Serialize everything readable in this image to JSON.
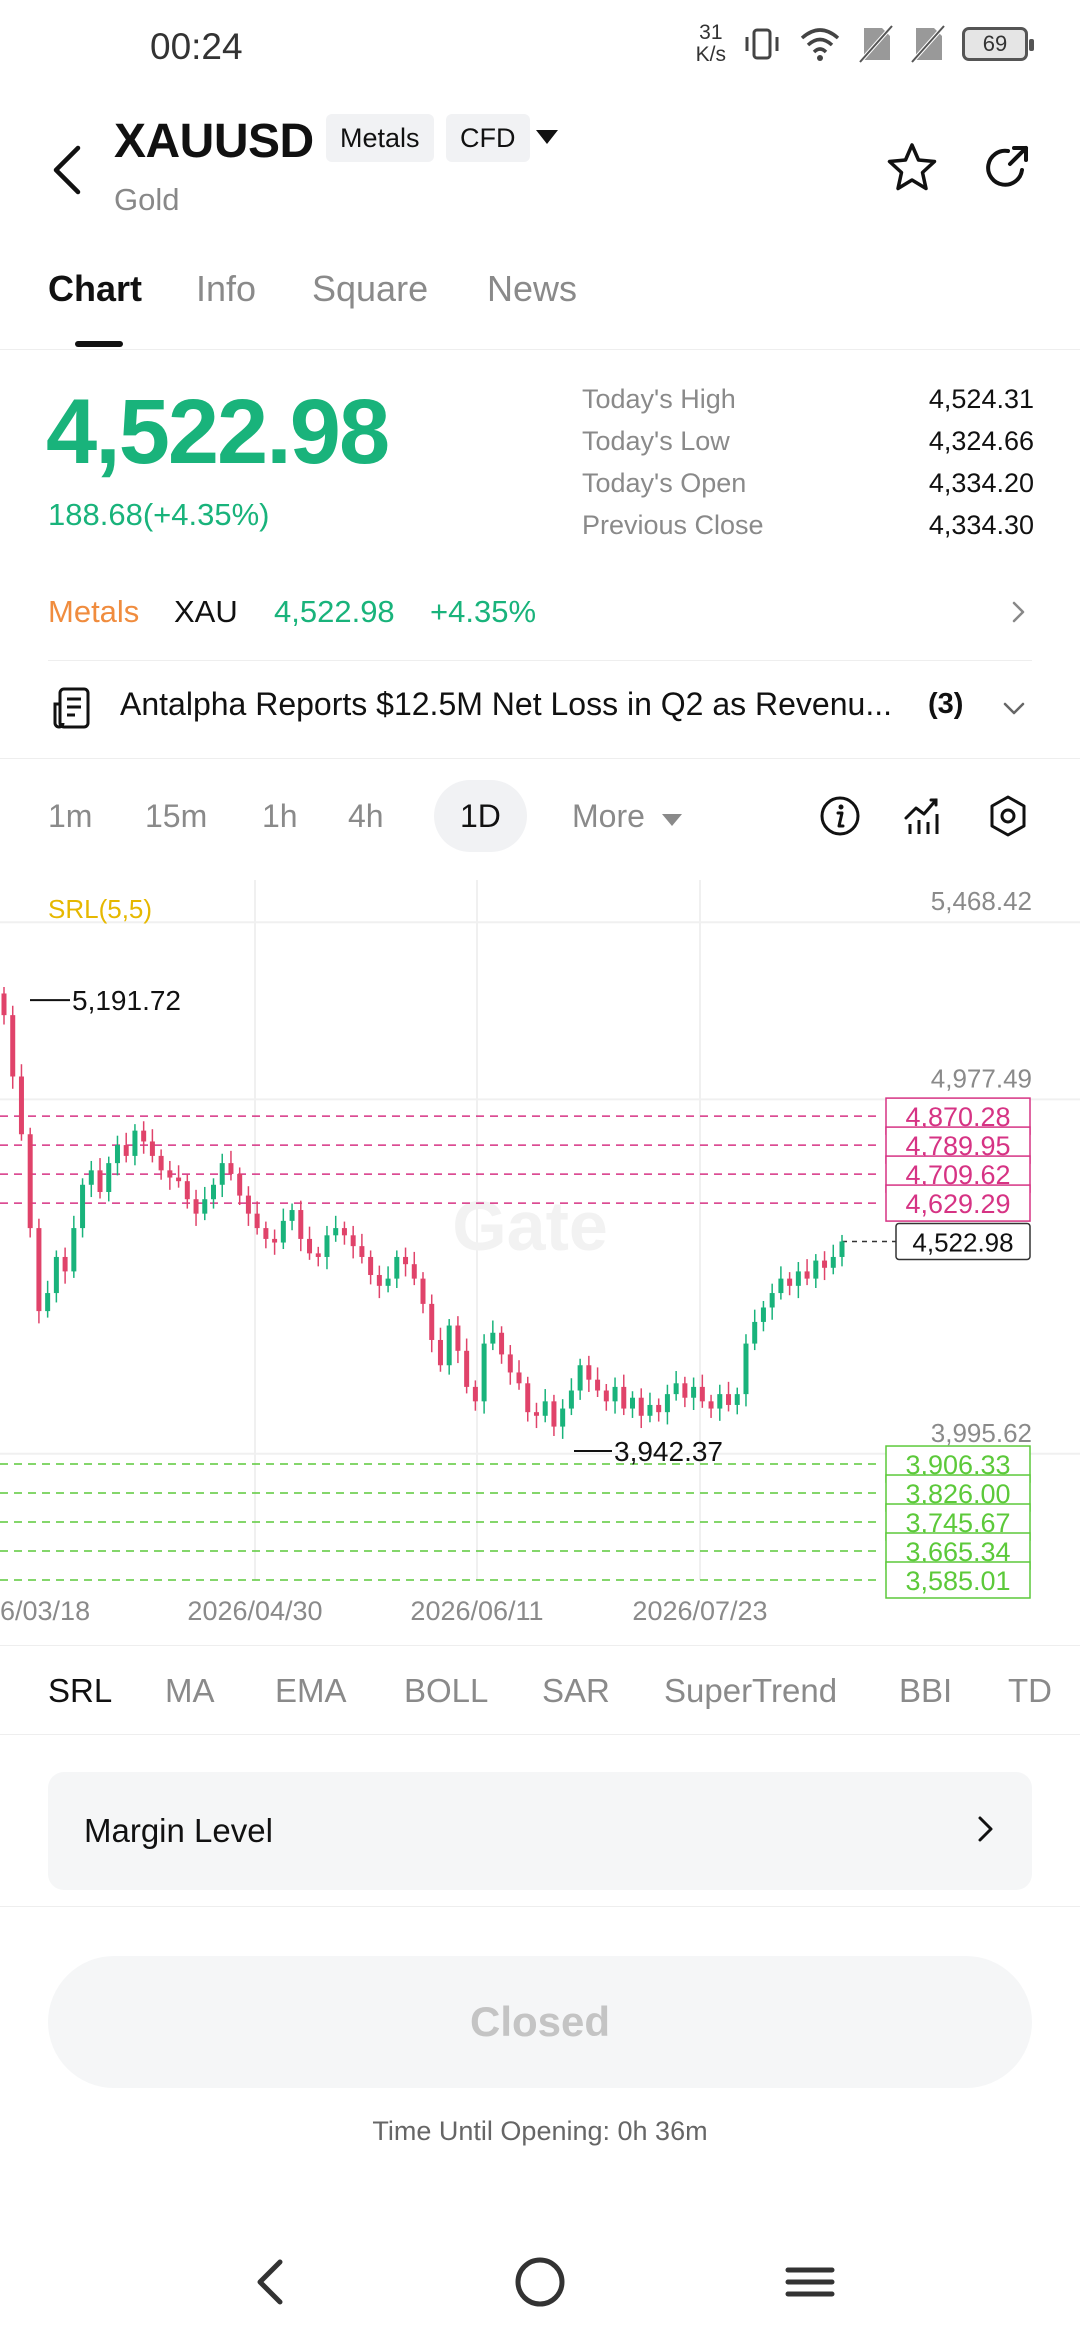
{
  "status_bar": {
    "time": "00:24",
    "net_speed_value": "31",
    "net_speed_unit": "K/s",
    "battery": "69"
  },
  "header": {
    "symbol": "XAUUSD",
    "tag_category": "Metals",
    "tag_type": "CFD",
    "name": "Gold"
  },
  "tabs": [
    {
      "label": "Chart",
      "active": true
    },
    {
      "label": "Info",
      "active": false
    },
    {
      "label": "Square",
      "active": false
    },
    {
      "label": "News",
      "active": false
    }
  ],
  "quote": {
    "price": "4,522.98",
    "change": "188.68(+4.35%)",
    "stats": [
      {
        "label": "Today's High",
        "value": "4,524.31"
      },
      {
        "label": "Today's Low",
        "value": "4,324.66"
      },
      {
        "label": "Today's Open",
        "value": "4,334.20"
      },
      {
        "label": "Previous Close",
        "value": "4,334.30"
      }
    ]
  },
  "metals_row": {
    "category": "Metals",
    "symbol": "XAU",
    "price": "4,522.98",
    "pct": "+4.35%"
  },
  "news": {
    "headline": "Antalpha Reports $12.5M Net Loss in Q2 as Revenu...",
    "count": "(3)"
  },
  "timeframes": {
    "items": [
      "1m",
      "15m",
      "1h",
      "4h",
      "1D"
    ],
    "active": "1D",
    "more_label": "More"
  },
  "colors": {
    "up": "#19b37b",
    "down": "#e0436a",
    "resistance": "#d63384",
    "support": "#5cc93a",
    "indicator_label": "#e6b800",
    "accent_orange": "#f08c3e"
  },
  "chart_data": {
    "type": "candlestick",
    "indicator": "SRL(5,5)",
    "y_axis_labels": [
      "5,468.42",
      "4,977.49",
      "3,995.62"
    ],
    "x_axis_labels": [
      "6/03/18",
      "2026/04/30",
      "2026/06/11",
      "2026/07/23"
    ],
    "ylim": [
      3585,
      5469
    ],
    "high_marker": "5,191.72",
    "low_marker": "3,942.37",
    "current_price": "4,522.98",
    "resistance_levels": [
      {
        "label": "4,870.28",
        "value": 4870.28
      },
      {
        "label": "4,789.95",
        "value": 4789.95
      },
      {
        "label": "4,709.62",
        "value": 4709.62
      },
      {
        "label": "4,629.29",
        "value": 4629.29
      }
    ],
    "support_levels": [
      {
        "label": "3,906.33",
        "value": 3906.33
      },
      {
        "label": "3,826.00",
        "value": 3826.0
      },
      {
        "label": "3,745.67",
        "value": 3745.67
      },
      {
        "label": "3,665.34",
        "value": 3665.34
      },
      {
        "label": "3,585.01",
        "value": 3585.01
      }
    ],
    "closes": [
      5150,
      4980,
      4820,
      4560,
      4330,
      4380,
      4480,
      4440,
      4560,
      4680,
      4720,
      4660,
      4740,
      4790,
      4760,
      4830,
      4800,
      4760,
      4720,
      4700,
      4690,
      4640,
      4600,
      4640,
      4680,
      4740,
      4710,
      4650,
      4600,
      4560,
      4530,
      4520,
      4580,
      4610,
      4530,
      4490,
      4480,
      4540,
      4560,
      4540,
      4510,
      4480,
      4430,
      4400,
      4420,
      4480,
      4460,
      4420,
      4350,
      4250,
      4180,
      4290,
      4220,
      4120,
      4080,
      4240,
      4270,
      4210,
      4160,
      4130,
      4050,
      4040,
      4080,
      4010,
      4060,
      4110,
      4180,
      4140,
      4110,
      4080,
      4120,
      4060,
      4090,
      4040,
      4070,
      4050,
      4100,
      4130,
      4090,
      4120,
      4080,
      4060,
      4100,
      4070,
      4100,
      4240,
      4300,
      4340,
      4380,
      4420,
      4400,
      4440,
      4420,
      4470,
      4450,
      4480,
      4522.98
    ]
  },
  "indicators": [
    "SRL",
    "MA",
    "EMA",
    "BOLL",
    "SAR",
    "SuperTrend",
    "BBI",
    "TD"
  ],
  "active_indicator": "SRL",
  "margin": {
    "label": "Margin Level"
  },
  "trade": {
    "closed_label": "Closed",
    "opening_text": "Time Until Opening: 0h 36m"
  },
  "watermark": "Gate"
}
